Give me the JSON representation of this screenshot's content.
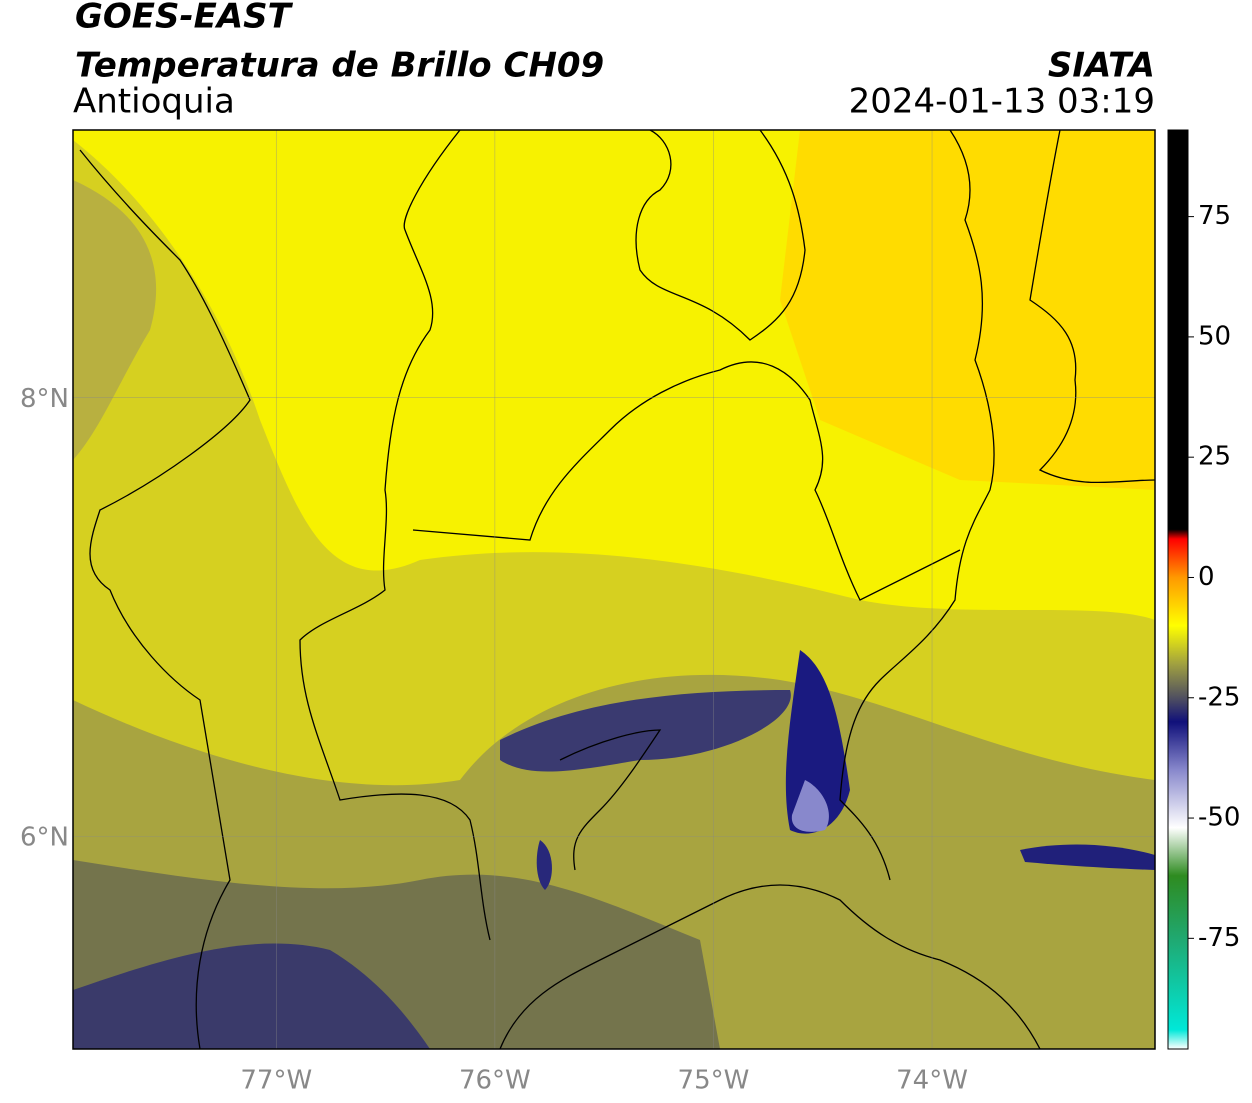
{
  "chart_data": {
    "type": "map",
    "title": "GOES-EAST",
    "subtitle": "Temperatura de Brillo CH09",
    "region": "Antioquia",
    "source": "SIATA",
    "timestamp": "2024-01-13 03:19",
    "xlim": [
      -77.93,
      -72.98
    ],
    "ylim": [
      5.03,
      9.22
    ],
    "xticks": [
      {
        "value": -77,
        "label": "77°W"
      },
      {
        "value": -76,
        "label": "76°W"
      },
      {
        "value": -75,
        "label": "75°W"
      },
      {
        "value": -74,
        "label": "74°W"
      }
    ],
    "yticks": [
      {
        "value": 8,
        "label": "8°N"
      },
      {
        "value": 6,
        "label": "6°N"
      }
    ],
    "grid": true,
    "colorbar": {
      "range": [
        -98,
        93
      ],
      "ticks": [
        75,
        50,
        25,
        0,
        -25,
        -50,
        -75
      ],
      "stops": [
        {
          "value": -98,
          "color": "#ffffff"
        },
        {
          "value": -94,
          "color": "#00e8d8"
        },
        {
          "value": -75,
          "color": "#20a870"
        },
        {
          "value": -62,
          "color": "#2e8b20"
        },
        {
          "value": -52,
          "color": "#ffffff"
        },
        {
          "value": -40,
          "color": "#8888cc"
        },
        {
          "value": -30,
          "color": "#10107a"
        },
        {
          "value": -25,
          "color": "#505060"
        },
        {
          "value": -18,
          "color": "#a0a040"
        },
        {
          "value": -10,
          "color": "#ffff00"
        },
        {
          "value": 0,
          "color": "#ff9900"
        },
        {
          "value": 8,
          "color": "#ff0000"
        },
        {
          "value": 10,
          "color": "#000000"
        },
        {
          "value": 93,
          "color": "#000000"
        }
      ]
    }
  }
}
